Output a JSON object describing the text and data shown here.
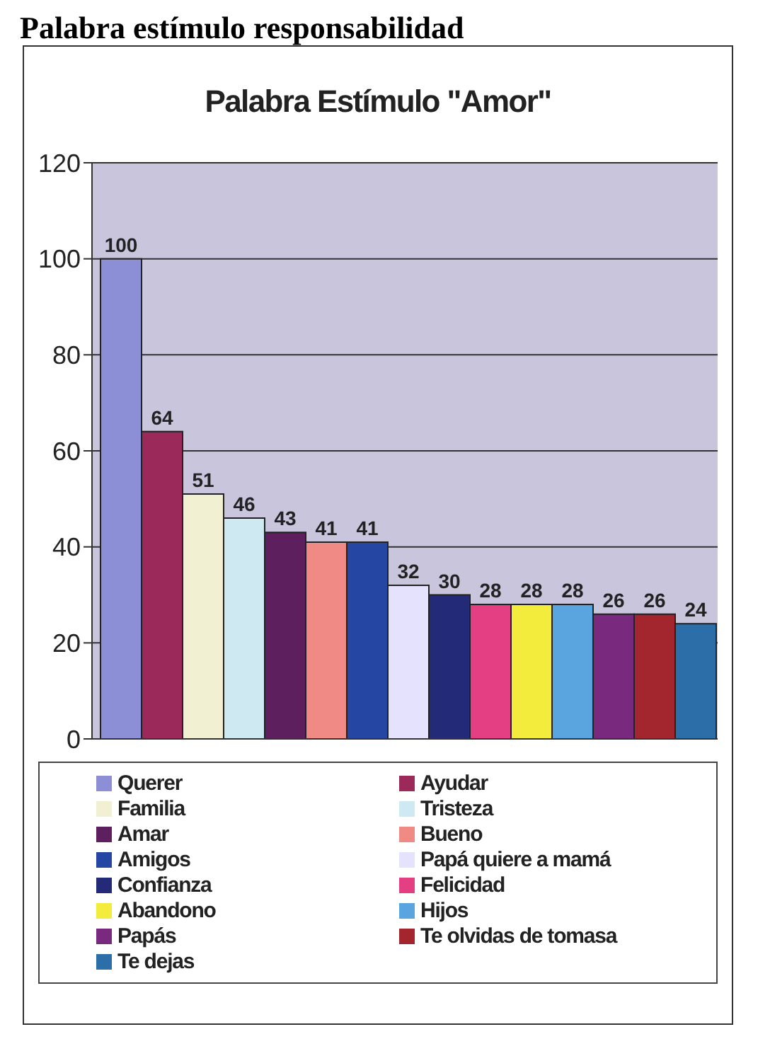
{
  "chart_data": {
    "type": "bar",
    "title": "Palabra Estímulo \"Amor\"",
    "annotations": [
      "Palabra estímulo responsabilidad"
    ],
    "categories": [
      null
    ],
    "series": [
      {
        "name": "Querer",
        "color": "#8c8fd6",
        "values": [
          100
        ]
      },
      {
        "name": "Ayudar",
        "color": "#9b2a5a",
        "values": [
          64
        ]
      },
      {
        "name": "Familia",
        "color": "#f2f0d2",
        "values": [
          51
        ]
      },
      {
        "name": "Tristeza",
        "color": "#cfe9f3",
        "values": [
          46
        ]
      },
      {
        "name": "Amar",
        "color": "#5e1f5e",
        "values": [
          43
        ]
      },
      {
        "name": "Bueno",
        "color": "#f08a84",
        "values": [
          41
        ]
      },
      {
        "name": "Amigos",
        "color": "#2547a3",
        "values": [
          41
        ]
      },
      {
        "name": "Papá quiere a mamá",
        "color": "#e4e2fc",
        "values": [
          32
        ]
      },
      {
        "name": "Confianza",
        "color": "#232a78",
        "values": [
          30
        ]
      },
      {
        "name": "Felicidad",
        "color": "#e33f82",
        "values": [
          28
        ]
      },
      {
        "name": "Abandono",
        "color": "#f4ec3c",
        "values": [
          28
        ]
      },
      {
        "name": "Hijos",
        "color": "#5aa5e0",
        "values": [
          28
        ]
      },
      {
        "name": "Papás",
        "color": "#7a2a7e",
        "values": [
          26
        ]
      },
      {
        "name": "Te olvidas de tomasa",
        "color": "#a3262e",
        "values": [
          26
        ]
      },
      {
        "name": "Te dejas",
        "color": "#2b6ea8",
        "values": [
          24
        ]
      }
    ],
    "ylim": [
      0,
      120
    ],
    "yticks": [
      0,
      20,
      40,
      60,
      80,
      100,
      120
    ],
    "grid": "y",
    "legend": "bottom",
    "data_labels": true
  }
}
